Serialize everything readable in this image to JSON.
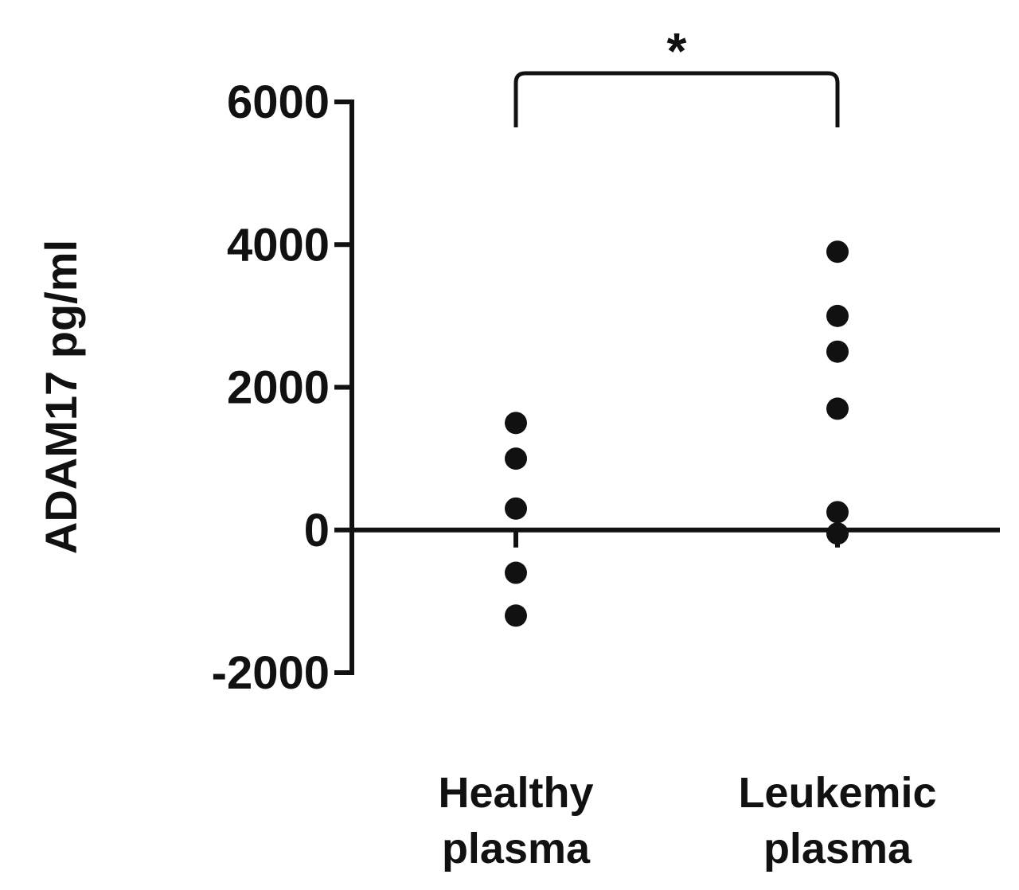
{
  "chart_data": {
    "type": "scatter",
    "title": "",
    "xlabel": "",
    "ylabel": "ADAM17 pg/ml",
    "ylim": [
      -2000,
      6000
    ],
    "yticks": [
      6000,
      4000,
      2000,
      0,
      -2000
    ],
    "ytick_labels": [
      "6000",
      "4000",
      "2000",
      "0",
      "-2000"
    ],
    "categories": [
      {
        "line1": "Healthy",
        "line2": "plasma"
      },
      {
        "line1": "Leukemic",
        "line2": "plasma"
      }
    ],
    "series": [
      {
        "category_index": 0,
        "values": [
          1500,
          1000,
          300,
          -600,
          -1200
        ]
      },
      {
        "category_index": 1,
        "values": [
          3900,
          3000,
          2500,
          1700,
          250,
          -50
        ]
      }
    ],
    "grid": false,
    "reference_line_y": 0,
    "significance": {
      "from": 0,
      "to": 1,
      "label": "*"
    },
    "point_color": "#111111"
  }
}
